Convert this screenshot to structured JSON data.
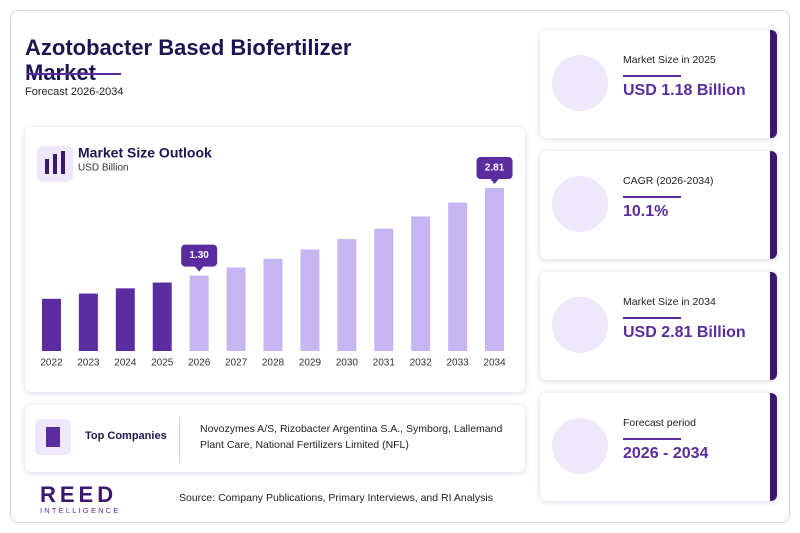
{
  "header": {
    "title": "Azotobacter Based Biofertilizer Market",
    "subtitle": "Forecast 2026-2034"
  },
  "chart_data": {
    "type": "bar",
    "title": "Market Size Outlook",
    "subtitle": "USD Billion",
    "categories": [
      "2022",
      "2023",
      "2024",
      "2025",
      "2026",
      "2027",
      "2028",
      "2029",
      "2030",
      "2031",
      "2032",
      "2033",
      "2034"
    ],
    "values": [
      0.9,
      0.99,
      1.08,
      1.18,
      1.3,
      1.44,
      1.59,
      1.75,
      1.93,
      2.11,
      2.32,
      2.56,
      2.81
    ],
    "value_labels": [
      null,
      null,
      null,
      null,
      "1.30",
      null,
      null,
      null,
      null,
      null,
      null,
      null,
      "2.81"
    ],
    "colors": [
      "#5a2ca0",
      "#5a2ca0",
      "#5a2ca0",
      "#5a2ca0",
      "#c7b5f1",
      "#c7b5f1",
      "#c7b5f1",
      "#c7b5f1",
      "#c7b5f1",
      "#c7b5f1",
      "#c7b5f1",
      "#c7b5f1",
      "#c7b5f1"
    ],
    "ylim": [
      0,
      3
    ]
  },
  "companies": {
    "label": "Top Companies",
    "text": "Novozymes A/S, Rizobacter Argentina S.A., Symborg, Lallemand Plant Care, National Fertilizers Limited (NFL)"
  },
  "stats": [
    {
      "label": "Market Size in 2025",
      "value": "USD 1.18 Billion"
    },
    {
      "label": "CAGR (2026-2034)",
      "value": "10.1%"
    },
    {
      "label": "Market Size in 2034",
      "value": "USD 2.81 Billion"
    },
    {
      "label": "Forecast period",
      "value": "2026 - 2034"
    }
  ],
  "source": "Source: Company Publications, Primary Interviews, and RI Analysis",
  "logo": {
    "name": "REED",
    "tagline": "INTELLIGENCE"
  }
}
